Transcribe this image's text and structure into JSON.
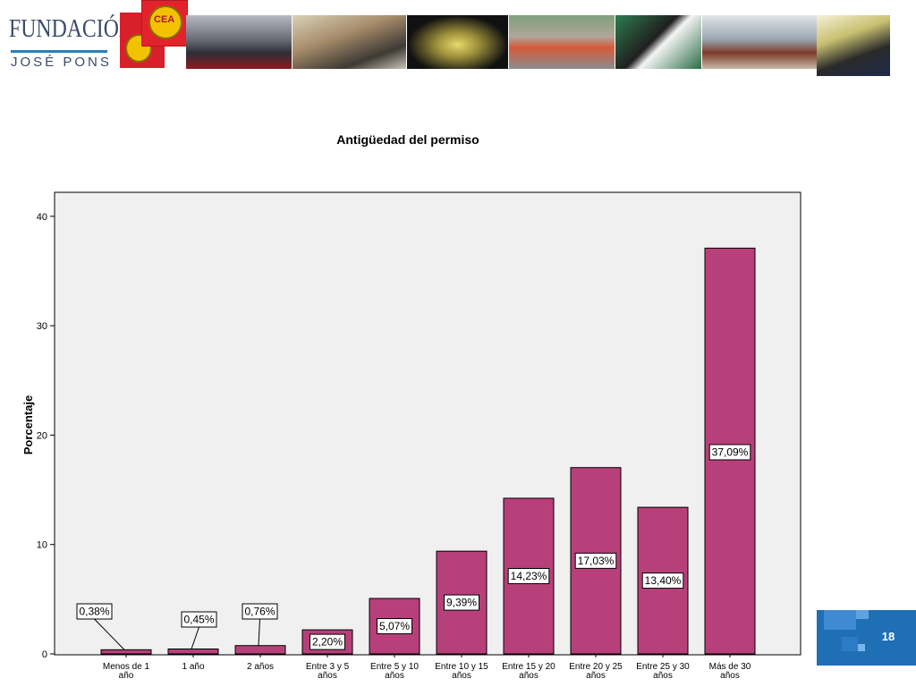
{
  "header": {
    "logo_fundacion_line1": "FUNDACIÓN",
    "logo_fundacion_line2": "JOSÉ PONS",
    "logo_cea_text": "CEA"
  },
  "page_number": "18",
  "colors": {
    "bar_fill": "#b8407a",
    "plot_background": "#f0f0f0",
    "accent_blue": "#1f6fb5"
  },
  "chart_data": {
    "type": "bar",
    "title": "Antigüedad del permiso",
    "ylabel": "Porcentaje",
    "xlabel": "",
    "ylim": [
      0,
      42
    ],
    "yticks": [
      0,
      10,
      20,
      30,
      40
    ],
    "categories": [
      [
        "Menos de 1",
        "año"
      ],
      [
        "1 año"
      ],
      [
        "2 años"
      ],
      [
        "Entre 3 y 5",
        "años"
      ],
      [
        "Entre 5 y 10",
        "años"
      ],
      [
        "Entre 10 y 15",
        "años"
      ],
      [
        "Entre 15 y 20",
        "años"
      ],
      [
        "Entre 20 y 25",
        "años"
      ],
      [
        "Entre 25 y 30",
        "años"
      ],
      [
        "Más de 30",
        "años"
      ]
    ],
    "values": [
      0.38,
      0.45,
      0.76,
      2.2,
      5.07,
      9.39,
      14.23,
      17.03,
      13.4,
      37.09
    ],
    "data_labels": [
      "0,38%",
      "0,45%",
      "0,76%",
      "2,20%",
      "5,07%",
      "9,39%",
      "14,23%",
      "17,03%",
      "13,40%",
      "37,09%"
    ],
    "grid": false,
    "legend": "none"
  }
}
